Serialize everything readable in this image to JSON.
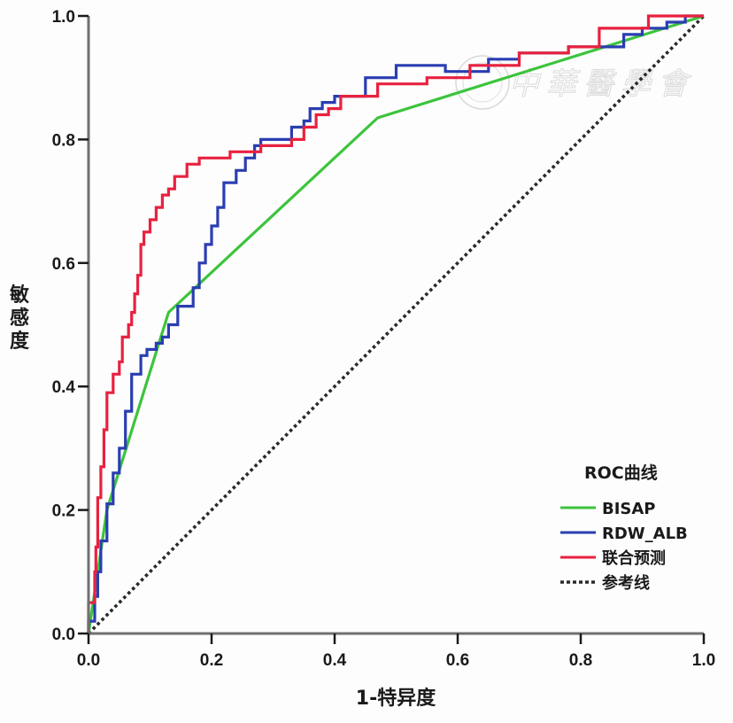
{
  "chart_data": {
    "type": "line",
    "title": "",
    "xlabel": "1-特异度",
    "ylabel": "敏感度",
    "xlim": [
      0.0,
      1.0
    ],
    "ylim": [
      0.0,
      1.0
    ],
    "xticks": [
      "0.0",
      "0.2",
      "0.4",
      "0.6",
      "0.8",
      "1.0"
    ],
    "yticks": [
      "0.0",
      "0.2",
      "0.4",
      "0.6",
      "0.8",
      "1.0"
    ],
    "grid": false,
    "legend": {
      "title": "ROC曲线",
      "position": "bottom-right"
    },
    "watermark": "中華醫學會",
    "series": [
      {
        "name": "BISAP",
        "color": "#3cc43c",
        "style": "solid",
        "x": [
          0.0,
          0.03,
          0.13,
          0.47,
          1.0
        ],
        "y": [
          0.0,
          0.2,
          0.52,
          0.835,
          1.0
        ]
      },
      {
        "name": "RDW_ALB",
        "color": "#2a3eb1",
        "style": "solid",
        "x": [
          0.0,
          0.0,
          0.01,
          0.01,
          0.015,
          0.015,
          0.02,
          0.02,
          0.03,
          0.03,
          0.04,
          0.04,
          0.05,
          0.05,
          0.06,
          0.06,
          0.07,
          0.07,
          0.085,
          0.085,
          0.095,
          0.095,
          0.11,
          0.11,
          0.12,
          0.12,
          0.13,
          0.13,
          0.145,
          0.145,
          0.17,
          0.17,
          0.18,
          0.18,
          0.19,
          0.19,
          0.2,
          0.2,
          0.21,
          0.21,
          0.22,
          0.22,
          0.24,
          0.24,
          0.255,
          0.255,
          0.27,
          0.27,
          0.28,
          0.28,
          0.33,
          0.33,
          0.35,
          0.35,
          0.36,
          0.36,
          0.38,
          0.38,
          0.4,
          0.4,
          0.45,
          0.45,
          0.5,
          0.5,
          0.58,
          0.58,
          0.65,
          0.65,
          0.7,
          0.7,
          0.78,
          0.78,
          0.87,
          0.87,
          0.9,
          0.9,
          0.94,
          0.94,
          0.97,
          0.97,
          1.0
        ],
        "y": [
          0.0,
          0.02,
          0.02,
          0.06,
          0.06,
          0.1,
          0.1,
          0.15,
          0.15,
          0.21,
          0.21,
          0.26,
          0.26,
          0.3,
          0.3,
          0.36,
          0.36,
          0.42,
          0.42,
          0.45,
          0.45,
          0.46,
          0.46,
          0.47,
          0.47,
          0.48,
          0.48,
          0.5,
          0.5,
          0.53,
          0.53,
          0.56,
          0.56,
          0.6,
          0.6,
          0.63,
          0.63,
          0.66,
          0.66,
          0.69,
          0.69,
          0.73,
          0.73,
          0.75,
          0.75,
          0.77,
          0.77,
          0.79,
          0.79,
          0.8,
          0.8,
          0.82,
          0.82,
          0.83,
          0.83,
          0.85,
          0.85,
          0.86,
          0.86,
          0.87,
          0.87,
          0.9,
          0.9,
          0.92,
          0.92,
          0.91,
          0.91,
          0.93,
          0.93,
          0.94,
          0.94,
          0.95,
          0.95,
          0.97,
          0.97,
          0.98,
          0.98,
          0.99,
          0.99,
          1.0,
          1.0
        ]
      },
      {
        "name": "联合预测",
        "color": "#e8213f",
        "style": "solid",
        "x": [
          0.0,
          0.0,
          0.01,
          0.01,
          0.012,
          0.012,
          0.015,
          0.015,
          0.02,
          0.02,
          0.025,
          0.025,
          0.03,
          0.03,
          0.04,
          0.04,
          0.05,
          0.05,
          0.055,
          0.055,
          0.065,
          0.065,
          0.07,
          0.07,
          0.075,
          0.075,
          0.08,
          0.08,
          0.085,
          0.085,
          0.09,
          0.09,
          0.1,
          0.1,
          0.11,
          0.11,
          0.12,
          0.12,
          0.13,
          0.13,
          0.14,
          0.14,
          0.16,
          0.16,
          0.18,
          0.18,
          0.23,
          0.23,
          0.28,
          0.28,
          0.33,
          0.33,
          0.35,
          0.35,
          0.37,
          0.37,
          0.39,
          0.39,
          0.41,
          0.41,
          0.47,
          0.47,
          0.55,
          0.55,
          0.62,
          0.62,
          0.7,
          0.7,
          0.78,
          0.78,
          0.83,
          0.83,
          0.91,
          0.91,
          1.0
        ],
        "y": [
          0.0,
          0.05,
          0.05,
          0.1,
          0.1,
          0.14,
          0.14,
          0.22,
          0.22,
          0.27,
          0.27,
          0.33,
          0.33,
          0.39,
          0.39,
          0.42,
          0.42,
          0.44,
          0.44,
          0.48,
          0.48,
          0.5,
          0.5,
          0.52,
          0.52,
          0.55,
          0.55,
          0.58,
          0.58,
          0.63,
          0.63,
          0.65,
          0.65,
          0.67,
          0.67,
          0.69,
          0.69,
          0.71,
          0.71,
          0.72,
          0.72,
          0.74,
          0.74,
          0.76,
          0.76,
          0.77,
          0.77,
          0.78,
          0.78,
          0.79,
          0.79,
          0.8,
          0.8,
          0.82,
          0.82,
          0.84,
          0.84,
          0.85,
          0.85,
          0.87,
          0.87,
          0.89,
          0.89,
          0.9,
          0.9,
          0.92,
          0.92,
          0.94,
          0.94,
          0.95,
          0.95,
          0.98,
          0.98,
          1.0,
          1.0
        ]
      },
      {
        "name": "参考线",
        "color": "#2a2a2a",
        "style": "dotted",
        "x": [
          0.0,
          1.0
        ],
        "y": [
          0.0,
          1.0
        ]
      }
    ]
  }
}
